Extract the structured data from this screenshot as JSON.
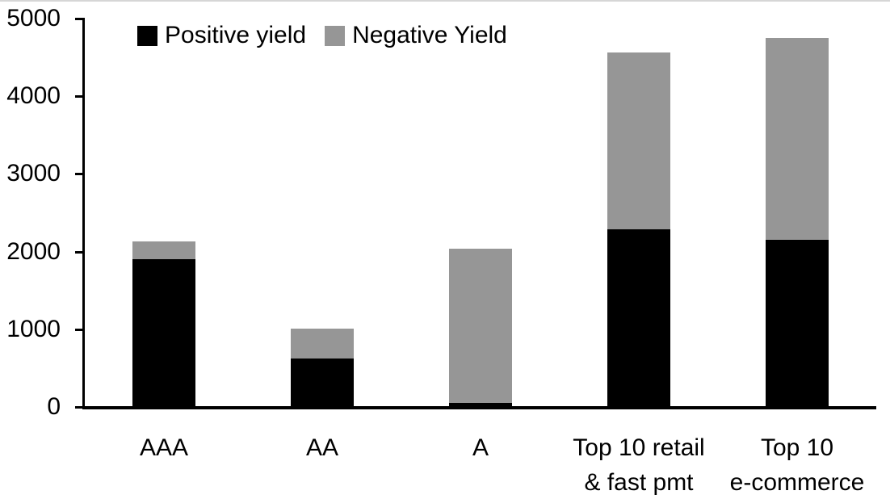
{
  "chart_data": {
    "type": "bar",
    "stacked": true,
    "title": "",
    "categories": [
      "AAA",
      "AA",
      "A",
      "Top 10 retail\n& fast pmt",
      "Top 10\ne-commerce"
    ],
    "series": [
      {
        "name": "Positive yield",
        "color": "#000000",
        "values": [
          1900,
          620,
          50,
          2290,
          2150
        ]
      },
      {
        "name": "Negative Yield",
        "color": "#969696",
        "values": [
          230,
          390,
          1990,
          2270,
          2600
        ]
      }
    ],
    "totals": [
      2130,
      1010,
      2040,
      4560,
      4750
    ],
    "xlabel": "",
    "ylabel": "",
    "ylim": [
      0,
      5000
    ],
    "yticks": [
      0,
      1000,
      2000,
      3000,
      4000,
      5000
    ],
    "grid": false,
    "legend_position": "top-left"
  },
  "colors": {
    "background": "#ffffff",
    "axis": "#000000",
    "text": "#000000",
    "positive_series": "#000000",
    "negative_series": "#969696"
  }
}
